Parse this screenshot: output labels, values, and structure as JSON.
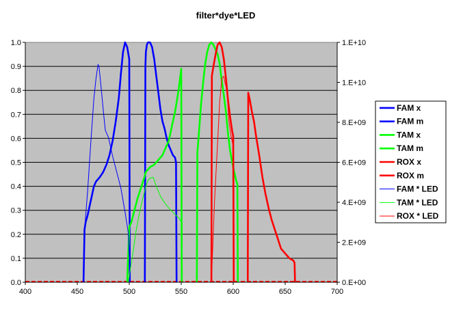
{
  "chart_data": {
    "type": "line",
    "title": "filter*dye*LED",
    "x_ticks": [
      "400",
      "450",
      "500",
      "550",
      "600",
      "650",
      "700"
    ],
    "xlim": [
      400,
      700
    ],
    "y_left_ticks": [
      "0.0",
      "0.1",
      "0.2",
      "0.3",
      "0.4",
      "0.5",
      "0.6",
      "0.7",
      "0.8",
      "0.9",
      "1.0"
    ],
    "ylim_left": [
      0,
      1
    ],
    "y_right_ticks": [
      "0.E+00",
      "2.E+09",
      "4.E+09",
      "6.E+09",
      "8.E+09",
      "1.E+10",
      "1.E+10"
    ],
    "ylim_right": [
      0,
      12000000000
    ],
    "grid": "horizontal",
    "legend_position": "right",
    "series": [
      {
        "name": "FAM x",
        "color": "#0000ff",
        "weight": "thick",
        "axis": "left",
        "x": [
          456,
          457,
          458,
          460,
          462,
          464,
          466,
          468,
          470,
          472,
          475,
          478,
          481,
          484,
          487,
          490,
          492,
          494,
          496,
          498,
          500,
          500.5
        ],
        "y": [
          0,
          0.22,
          0.25,
          0.28,
          0.32,
          0.36,
          0.4,
          0.42,
          0.43,
          0.44,
          0.46,
          0.49,
          0.53,
          0.59,
          0.67,
          0.77,
          0.87,
          0.96,
          1.0,
          0.98,
          0.93,
          0
        ]
      },
      {
        "name": "FAM m",
        "color": "#0000ff",
        "weight": "thick",
        "axis": "left",
        "x": [
          515,
          515.5,
          516,
          517,
          518,
          520,
          522,
          524,
          526,
          528,
          530,
          532,
          534,
          536,
          538,
          540,
          542,
          544,
          545,
          545.5
        ],
        "y": [
          0,
          0.9,
          0.96,
          0.99,
          1.0,
          1.0,
          0.98,
          0.93,
          0.86,
          0.79,
          0.72,
          0.67,
          0.64,
          0.6,
          0.57,
          0.55,
          0.53,
          0.52,
          0.5,
          0
        ]
      },
      {
        "name": "TAM x",
        "color": "#00ff00",
        "weight": "thick",
        "axis": "left",
        "x": [
          498,
          500,
          502,
          505,
          508,
          511,
          514,
          516,
          518,
          520,
          524,
          528,
          532,
          535,
          538,
          540,
          542,
          544,
          546,
          548,
          550,
          550.5
        ],
        "y": [
          0,
          0.23,
          0.25,
          0.3,
          0.35,
          0.39,
          0.43,
          0.46,
          0.47,
          0.48,
          0.49,
          0.51,
          0.53,
          0.56,
          0.59,
          0.63,
          0.67,
          0.71,
          0.76,
          0.82,
          0.89,
          0
        ]
      },
      {
        "name": "TAM m",
        "color": "#00ff00",
        "weight": "thick",
        "axis": "left",
        "x": [
          565,
          565.5,
          567,
          569,
          571,
          573,
          575,
          577,
          579,
          581,
          583,
          585,
          587,
          589,
          591,
          593,
          595,
          597,
          599,
          601,
          603,
          604,
          604.5
        ],
        "y": [
          0,
          0.54,
          0.62,
          0.74,
          0.83,
          0.91,
          0.96,
          0.99,
          1.0,
          0.99,
          0.97,
          0.95,
          0.91,
          0.84,
          0.78,
          0.71,
          0.62,
          0.55,
          0.5,
          0.46,
          0.42,
          0.41,
          0
        ]
      },
      {
        "name": "ROX x",
        "color": "#ff0000",
        "weight": "thick",
        "axis": "left",
        "x": [
          579,
          579.5,
          581,
          583,
          585,
          587,
          589,
          591,
          593,
          595,
          597,
          599,
          600,
          600.5
        ],
        "y": [
          0,
          0.86,
          0.9,
          0.95,
          0.99,
          1.0,
          0.98,
          0.93,
          0.85,
          0.76,
          0.69,
          0.63,
          0.61,
          0
        ]
      },
      {
        "name": "ROX m",
        "color": "#ff0000",
        "weight": "thick",
        "axis": "left",
        "x": [
          614,
          614.5,
          616,
          618,
          620,
          622,
          625,
          628,
          631,
          634,
          637,
          640,
          643,
          646,
          650,
          654,
          658,
          659,
          659.5
        ],
        "y": [
          0,
          0.79,
          0.76,
          0.71,
          0.67,
          0.61,
          0.53,
          0.44,
          0.37,
          0.31,
          0.26,
          0.22,
          0.18,
          0.14,
          0.12,
          0.1,
          0.09,
          0.08,
          0
        ]
      },
      {
        "name": "FAM * LED",
        "color": "#0000ff",
        "weight": "thin",
        "axis": "right",
        "x": [
          457,
          460,
          463,
          466,
          468,
          470,
          471,
          473,
          475,
          477,
          480,
          484,
          488,
          492,
          496,
          499,
          501
        ],
        "y": [
          2600000000,
          4600000000,
          7000000000,
          9200000000,
          10200000000,
          10900000000,
          10750000000,
          9700000000,
          8600000000,
          7600000000,
          7250000000,
          6300000000,
          5500000000,
          4700000000,
          3500000000,
          2500000000,
          0
        ]
      },
      {
        "name": "TAM * LED",
        "color": "#00ff00",
        "weight": "thin",
        "axis": "right",
        "x": [
          499,
          503,
          507,
          510,
          513,
          516,
          518,
          520,
          523,
          526,
          530,
          535,
          540,
          544,
          548,
          550
        ],
        "y": [
          0,
          1300000000,
          2700000000,
          3500000000,
          4200000000,
          4800000000,
          5100000000,
          5200000000,
          5250000000,
          4800000000,
          4300000000,
          3900000000,
          3600000000,
          3400000000,
          3200000000,
          3000000000
        ]
      },
      {
        "name": "ROX * LED",
        "color": "#ff0000",
        "weight": "thin",
        "axis": "right",
        "x": [
          579,
          582,
          585,
          587,
          589,
          591,
          592,
          593,
          594,
          596,
          598,
          600,
          601
        ],
        "y": [
          0,
          4000000000,
          7000000000,
          9000000000,
          10200000000,
          10300000000,
          10000000000,
          9800000000,
          9500000000,
          8000000000,
          7300000000,
          6800000000,
          0
        ]
      }
    ],
    "baselines": [
      {
        "color": "#ff0000",
        "x": [
          400,
          700
        ],
        "y": [
          0,
          0
        ],
        "dashed": true
      }
    ]
  }
}
